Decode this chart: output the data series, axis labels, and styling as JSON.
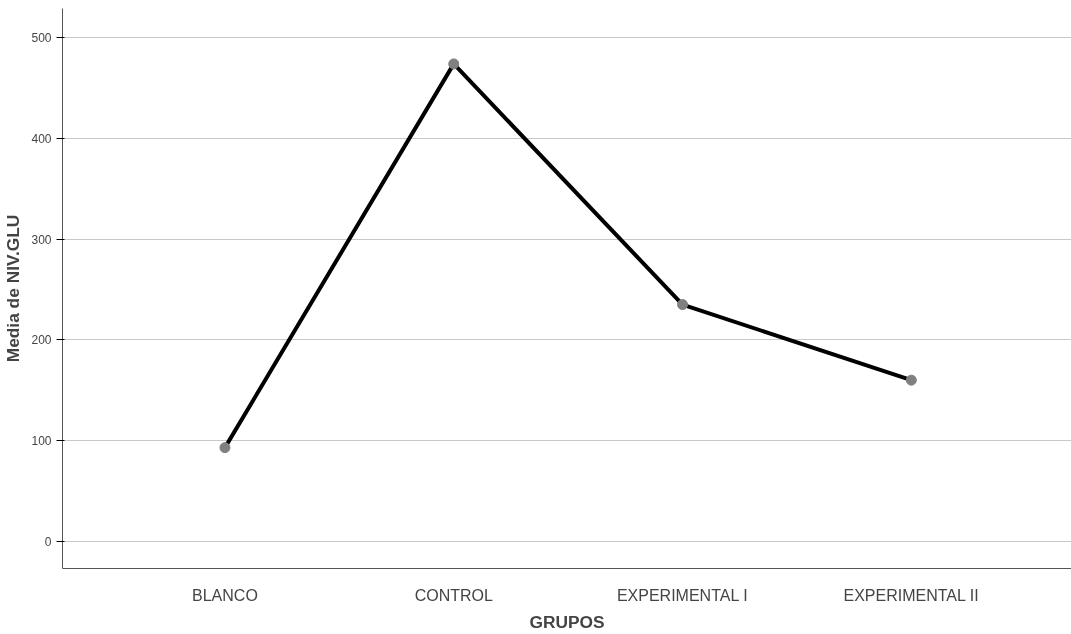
{
  "chart_data": {
    "type": "line",
    "xlabel": "GRUPOS",
    "ylabel": "Media de NIV.GLU",
    "categories": [
      "BLANCO",
      "CONTROL",
      "EXPERIMENTAL I",
      "EXPERIMENTAL II"
    ],
    "series": [
      {
        "color": "#000000",
        "values": [
          93,
          474,
          235,
          160
        ]
      }
    ],
    "ylim": [
      -27,
      529
    ],
    "yticks": [
      0,
      100,
      200,
      300,
      400,
      500
    ],
    "grid": "y",
    "marker": "circle",
    "line_style": "solid"
  }
}
